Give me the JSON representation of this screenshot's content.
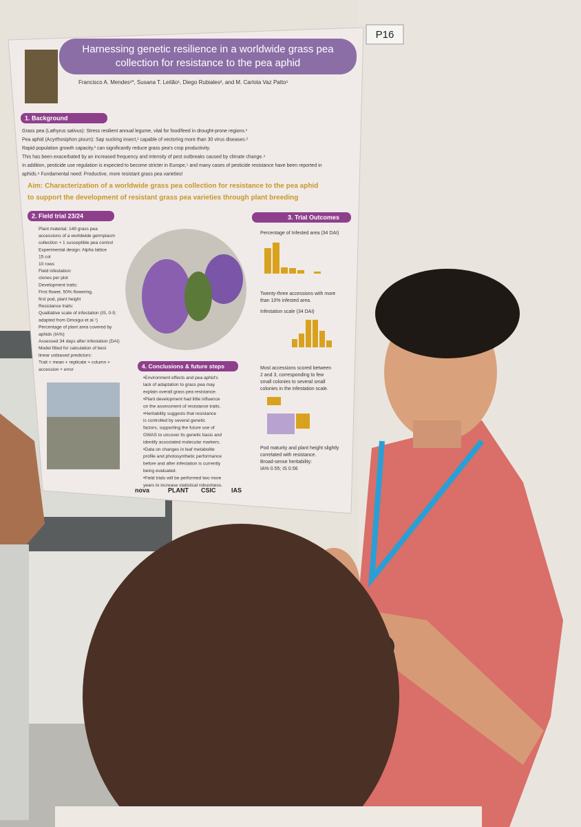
{
  "tag": "P16",
  "poster": {
    "title": [
      "Harnessing genetic resilience in a worldwide grass pea",
      "collection for resistance to the pea aphid"
    ],
    "authors": "Francisco A. Mendes¹*, Susana T. Leitão¹, Diego Rubiales², and M. Carlota Vaz Patto¹",
    "background": {
      "heading": "1. Background",
      "lines": [
        "Grass pea (Lathyrus sativus): Stress resilient annual legume, vital for food/feed in drought-prone regions.¹",
        "Pea aphid (Acyrthosiphon pisum): Sap sucking insect,² capable of vectoring more than 30 virus diseases.²",
        "Rapid population growth capacity,³ can significantly reduce grass pea's crop productivity.",
        "This has been exacerbated by an increased frequency and intensity of pest outbreaks caused by climate change.⁴",
        "In addition, pesticide use regulation is expected to become stricter in Europe,⁵ and many cases of pesticide resistance have been reported in",
        "aphids.⁶ Fundamental need: Productive, more resistant grass pea varieties!"
      ]
    },
    "aim": [
      "Aim: Characterization of a worldwide grass pea collection for resistance to the pea aphid",
      "to support the development of resistant grass pea varieties through plant breeding"
    ],
    "field_trial": {
      "heading": "2. Field trial 23/24",
      "lines": [
        "Plant material: 149 grass pea",
        "accessions of a worldwide germplasm",
        "collection + 1 susceptible pea control",
        "Experimental design: Alpha lattice",
        "15 col",
        "10 rows",
        "Field infestation:",
        "clones per plot",
        "Development traits:",
        "First flower, 50% flowering,",
        "first pod, plant height",
        "Resistance traits:",
        "Qualitative scale of infestation (IS, 0-5;",
        "adapted from Omoigui et al.⁷)",
        "Percentage of plant area covered by",
        "aphids (IA%)",
        "Assessed 34 days after infestation (DAI)",
        "Model fitted for calculation of best",
        "linear unbiased predictors:",
        "Trait = mean + replicate + column +",
        "accession + error"
      ]
    },
    "outcomes": {
      "heading": "3. Trial Outcomes",
      "lines": [
        "Percentage of Infested area (34 DAI)",
        "Twenty-three accessions with more",
        "than 10% infested area.",
        "Infestation scale (34 DAI)",
        "Most accessions scored between",
        "2 and 3, corresponding to few",
        "small colonies to several small",
        "colonies in the infestation scale.",
        "Pod maturity and plant height slightly",
        "correlated with resistance.",
        "Broad-sense heritability:",
        "IA% 0.55; IS 0.56"
      ]
    },
    "conclusions": {
      "heading": "4. Conclusions & future steps",
      "lines": [
        "•Environment effects and pea aphid's",
        "lack of adaptation to grass pea may",
        "explain overall grass pea resistance.",
        "•Plant development had little influence",
        "on the assessment of resistance traits.",
        "•Heritability suggests that resistance",
        "is controlled by several genetic",
        "factors, supporting the future use of",
        "GWAS to uncover its genetic basis and",
        "identify associated molecular markers.",
        "•Data on changes in leaf metabolite",
        "profile and photosynthetic performance",
        "before and after infestation is currently",
        "being evaluated.",
        "•Field trials will be performed two more",
        "years to increase statistical robustness."
      ]
    },
    "logos": [
      "nova",
      "PLANT",
      "CSIC",
      "IAS"
    ]
  }
}
